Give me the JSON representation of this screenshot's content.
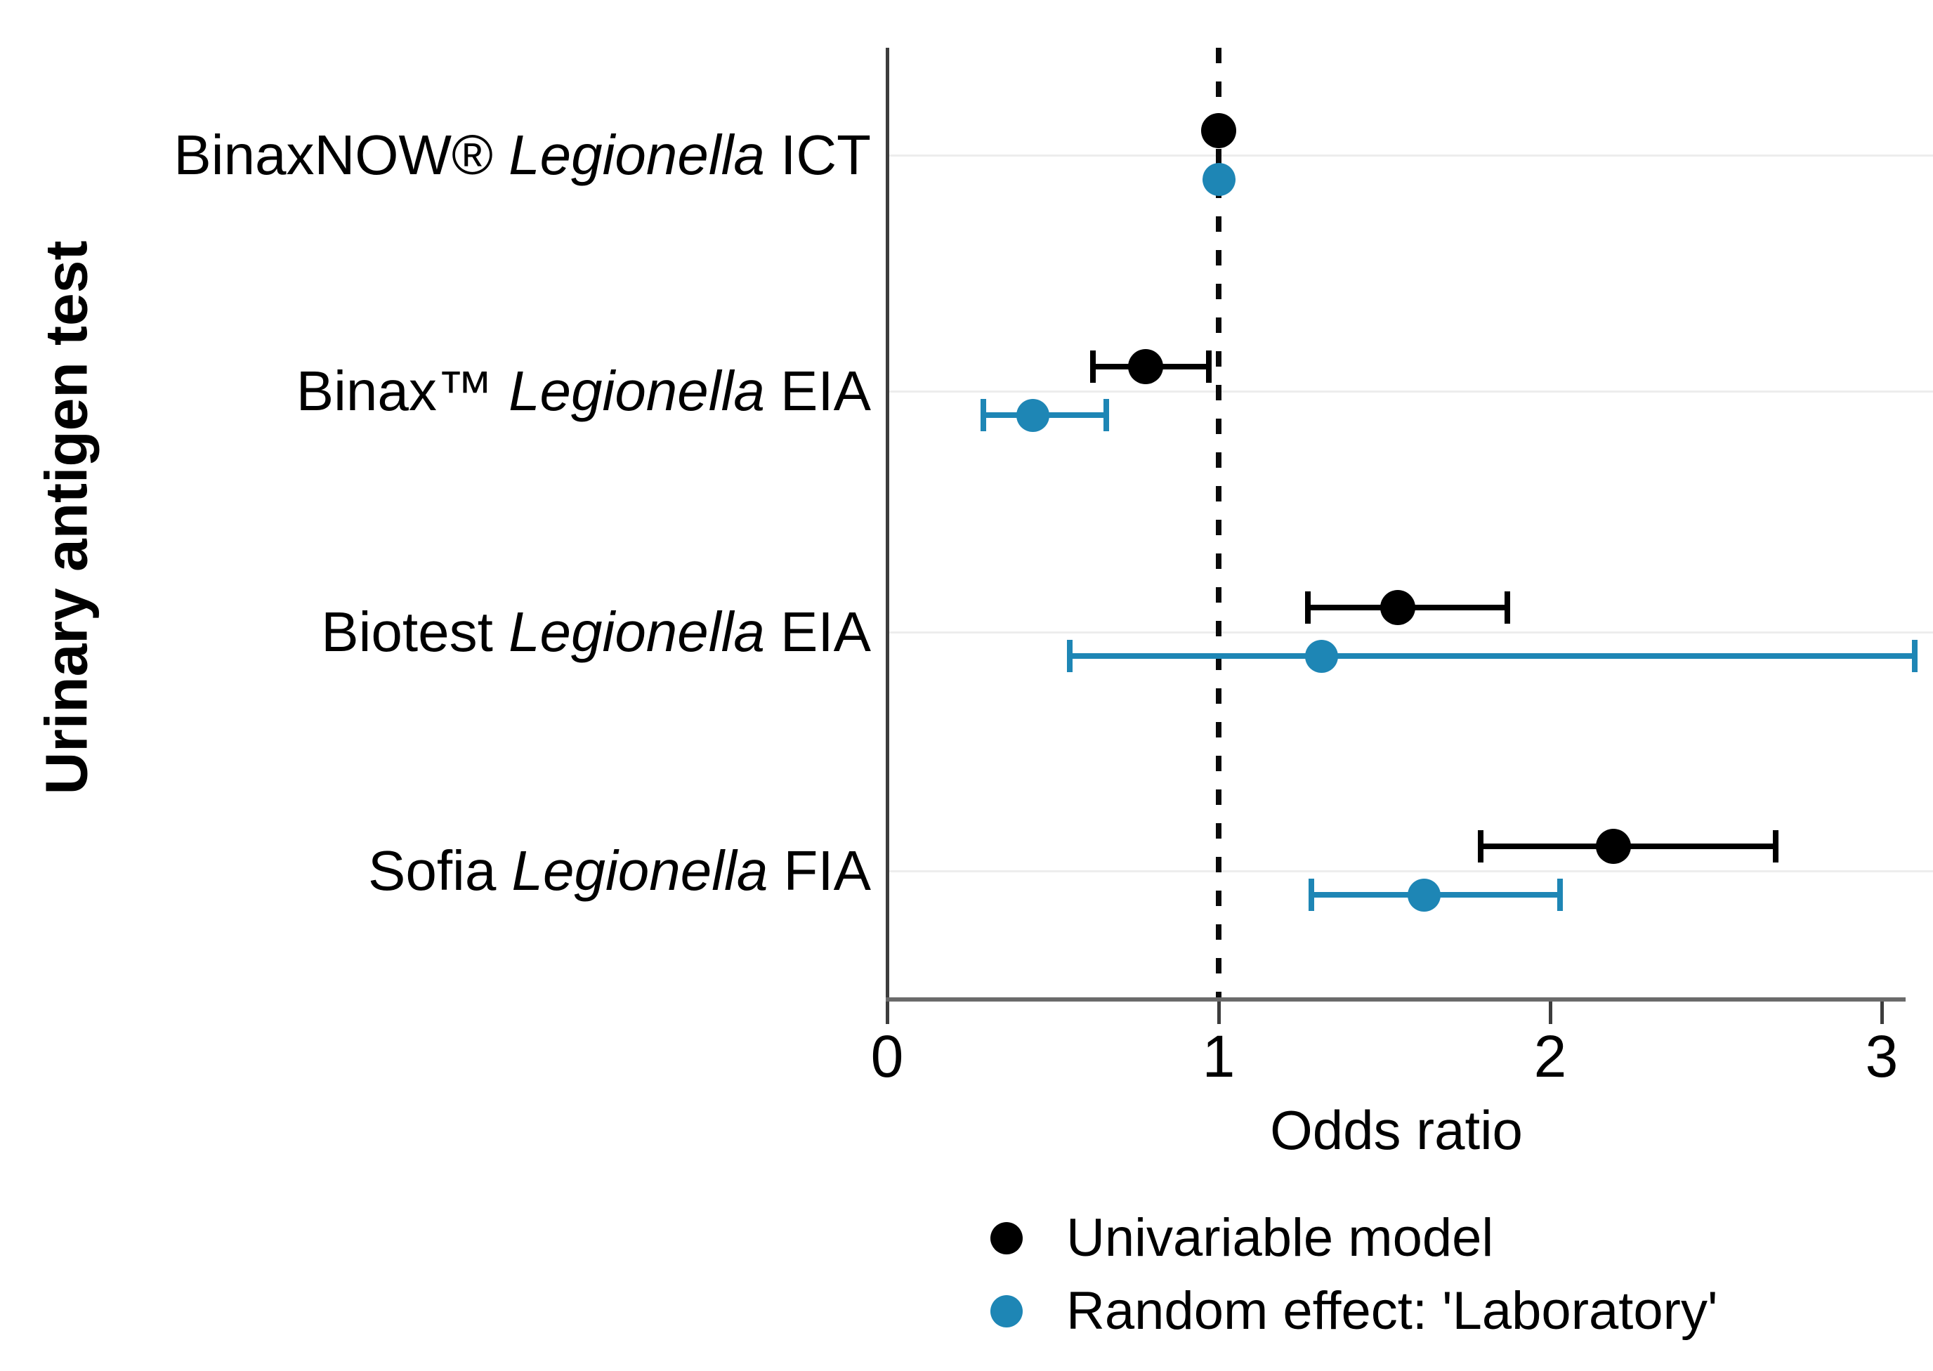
{
  "figure": {
    "ylabel": "Urinary antigen test",
    "xlabel": "Odds ratio"
  },
  "legend": [
    {
      "label": "Univariable model",
      "color": "#000000"
    },
    {
      "label": "Random effect: 'Laboratory'",
      "color": "#1e86b5"
    }
  ],
  "chart_data": {
    "type": "scatter",
    "subtype": "forest-plot-horizontal",
    "title": "",
    "xlabel": "Odds ratio",
    "ylabel": "Urinary antigen test",
    "xlim": [
      0,
      3.07
    ],
    "x_ticks": [
      0,
      1,
      2,
      3
    ],
    "grid": "horizontal-per-category",
    "reference_line_x": 1,
    "legend_position": "below",
    "categories": [
      "BinaxNOW® Legionella ICT",
      "Binax™ Legionella EIA",
      "Biotest Legionella EIA",
      "Sofia Legionella FIA"
    ],
    "categories_rich": [
      [
        {
          "t": "BinaxNOW® ",
          "i": false
        },
        {
          "t": "Legionella",
          "i": true
        },
        {
          "t": " ICT",
          "i": false
        }
      ],
      [
        {
          "t": "Binax™ ",
          "i": false
        },
        {
          "t": "Legionella",
          "i": true
        },
        {
          "t": " EIA",
          "i": false
        }
      ],
      [
        {
          "t": "Biotest ",
          "i": false
        },
        {
          "t": "Legionella",
          "i": true
        },
        {
          "t": " EIA",
          "i": false
        }
      ],
      [
        {
          "t": "Sofia ",
          "i": false
        },
        {
          "t": "Legionella",
          "i": true
        },
        {
          "t": " FIA",
          "i": false
        }
      ]
    ],
    "series": [
      {
        "name": "Univariable model",
        "color": "#000000",
        "values": [
          {
            "or": 1.0,
            "lo": null,
            "hi": null
          },
          {
            "or": 0.78,
            "lo": 0.62,
            "hi": 0.97
          },
          {
            "or": 1.54,
            "lo": 1.27,
            "hi": 1.87
          },
          {
            "or": 2.19,
            "lo": 1.79,
            "hi": 2.68
          }
        ]
      },
      {
        "name": "Random effect: 'Laboratory'",
        "color": "#1e86b5",
        "values": [
          {
            "or": 1.0,
            "lo": null,
            "hi": null
          },
          {
            "or": 0.44,
            "lo": 0.29,
            "hi": 0.66
          },
          {
            "or": 1.31,
            "lo": 0.55,
            "hi": 3.1
          },
          {
            "or": 1.62,
            "lo": 1.28,
            "hi": 2.03
          }
        ]
      }
    ]
  }
}
